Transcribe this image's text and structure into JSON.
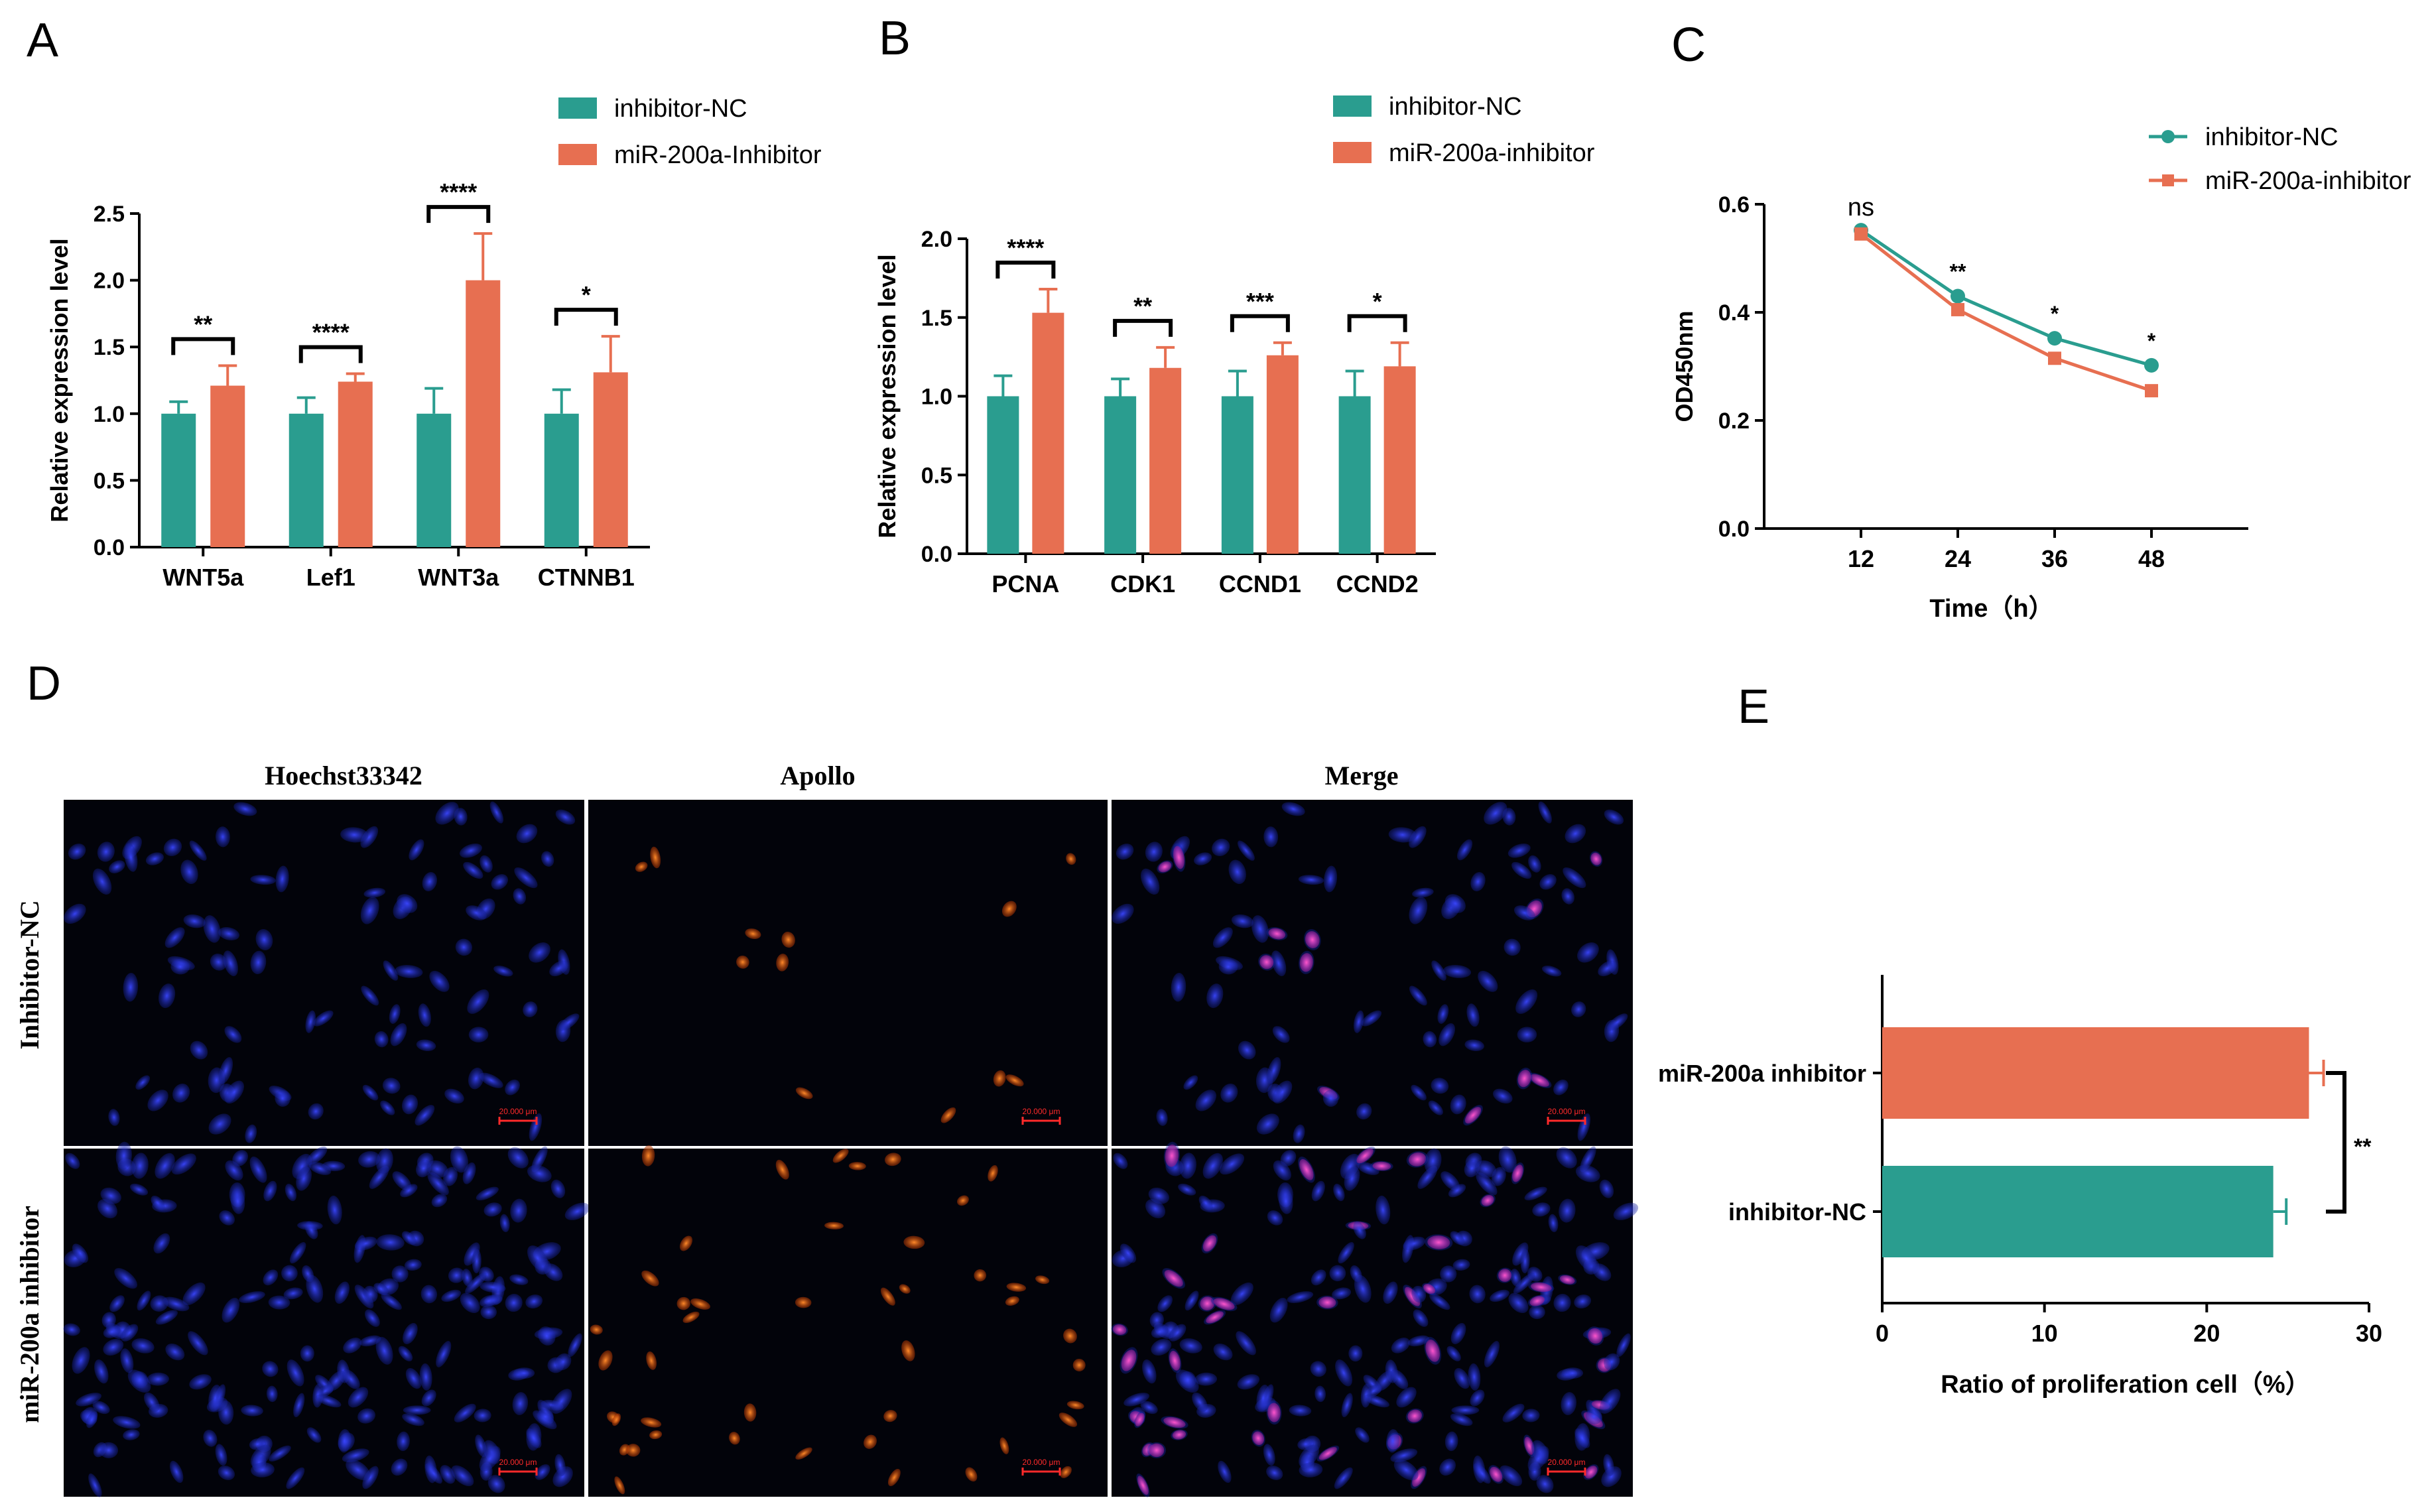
{
  "colors": {
    "nc": "#2a9d8f",
    "inhib": "#e76f51",
    "axis": "#000000",
    "scale": "#ff2a2a",
    "nuclei": "#1f2bd6",
    "apollo": "#ff6a10",
    "merge": "#ff3aa8"
  },
  "panels": {
    "A": "A",
    "B": "B",
    "C": "C",
    "D": "D",
    "E": "E"
  },
  "chart_data": [
    {
      "id": "A",
      "type": "bar",
      "title": "",
      "ylabel": "Relative expression level",
      "xlabel": "",
      "ylim": [
        0,
        2.5
      ],
      "yticks": [
        0.0,
        0.5,
        1.0,
        1.5,
        2.0,
        2.5
      ],
      "yticklabels": [
        "0.0",
        "0.5",
        "1.0",
        "1.5",
        "2.0",
        "2.5"
      ],
      "categories": [
        "WNT5a",
        "Lef1",
        "WNT3a",
        "CTNNB1"
      ],
      "series": [
        {
          "name": "inhibitor-NC",
          "values": [
            1.0,
            1.0,
            1.0,
            1.0
          ],
          "errors": [
            0.09,
            0.12,
            0.19,
            0.18
          ]
        },
        {
          "name": "miR-200a-Inhibitor",
          "values": [
            1.21,
            1.24,
            2.0,
            1.31
          ],
          "errors": [
            0.15,
            0.06,
            0.35,
            0.27
          ]
        }
      ],
      "significance": [
        "**",
        "****",
        "****",
        "*"
      ],
      "legend": [
        "inhibitor-NC",
        "miR-200a-Inhibitor"
      ]
    },
    {
      "id": "B",
      "type": "bar",
      "title": "",
      "ylabel": "Relative expression level",
      "xlabel": "",
      "ylim": [
        0,
        2.0
      ],
      "yticks": [
        0.0,
        0.5,
        1.0,
        1.5,
        2.0
      ],
      "yticklabels": [
        "0.0",
        "0.5",
        "1.0",
        "1.5",
        "2.0"
      ],
      "categories": [
        "PCNA",
        "CDK1",
        "CCND1",
        "CCND2"
      ],
      "series": [
        {
          "name": "inhibitor-NC",
          "values": [
            1.0,
            1.0,
            1.0,
            1.0
          ],
          "errors": [
            0.13,
            0.11,
            0.16,
            0.16
          ]
        },
        {
          "name": "miR-200a-inhibitor",
          "values": [
            1.53,
            1.18,
            1.26,
            1.19
          ],
          "errors": [
            0.15,
            0.13,
            0.08,
            0.15
          ]
        }
      ],
      "significance": [
        "****",
        "**",
        "***",
        "*"
      ],
      "legend": [
        "inhibitor-NC",
        "miR-200a-inhibitor"
      ]
    },
    {
      "id": "C",
      "type": "line",
      "title": "",
      "ylabel": "OD450nm",
      "xlabel": "Time（h）",
      "xlim": [
        0,
        60
      ],
      "ylim": [
        0,
        0.6
      ],
      "xticks": [
        12,
        24,
        36,
        48
      ],
      "xticklabels": [
        "12",
        "24",
        "36",
        "48"
      ],
      "yticks": [
        0.0,
        0.2,
        0.4,
        0.6
      ],
      "yticklabels": [
        "0.0",
        "0.2",
        "0.4",
        "0.6"
      ],
      "x": [
        12,
        24,
        36,
        48
      ],
      "series": [
        {
          "name": "inhibitor-NC",
          "values": [
            0.552,
            0.43,
            0.352,
            0.302
          ],
          "marker": "circle"
        },
        {
          "name": "miR-200a-inhibitor",
          "values": [
            0.545,
            0.405,
            0.315,
            0.255
          ],
          "marker": "square"
        }
      ],
      "significance": [
        "ns",
        "**",
        "*",
        "*"
      ],
      "legend": [
        "inhibitor-NC",
        "miR-200a-inhibitor"
      ]
    },
    {
      "id": "E",
      "type": "bar",
      "orientation": "horizontal",
      "title": "",
      "xlabel": "Ratio of proliferation cell（%）",
      "xlim": [
        0,
        30
      ],
      "xticks": [
        0,
        10,
        20,
        30
      ],
      "xticklabels": [
        "0",
        "10",
        "20",
        "30"
      ],
      "categories": [
        "miR-200a inhibitor",
        "inhibitor-NC"
      ],
      "values": [
        26.3,
        24.1
      ],
      "errors": [
        0.9,
        0.8
      ],
      "significance": "**"
    }
  ],
  "microscopy": {
    "columns": [
      "Hoechst33342",
      "Apollo",
      "Merge"
    ],
    "rows": [
      "Inhibitor-NC",
      "miR-200a inhibitor"
    ],
    "scale_bar": "20.000 μm"
  }
}
